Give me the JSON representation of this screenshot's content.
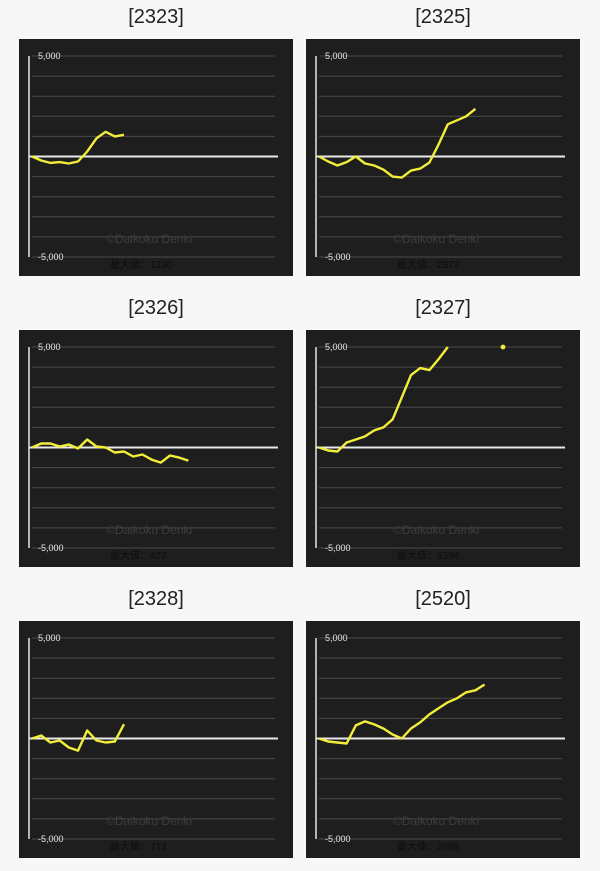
{
  "charts_grid": [
    {
      "id": "[2323]",
      "max_label": "最大値：1230"
    },
    {
      "id": "[2325]",
      "max_label": "最大値：2372"
    },
    {
      "id": "[2326]",
      "max_label": "最大値：427"
    },
    {
      "id": "[2327]",
      "max_label": "最大値：6394"
    },
    {
      "id": "[2328]",
      "max_label": "最大値：713"
    },
    {
      "id": "[2520]",
      "max_label": "最大値：2689"
    }
  ],
  "watermark": "©Daikoku Denki",
  "colors": {
    "page_bg": "#f7f7f7",
    "chart_bg": "#1e1e1e",
    "grid": "#4a4a4a",
    "zero_line": "#e8e8e8",
    "series": "#f2ee3a"
  },
  "chart_data": [
    {
      "type": "line",
      "title": "[2323]",
      "ylim": [
        -5000,
        5000
      ],
      "yticks": [
        5000,
        -5000
      ],
      "ytick_labels": [
        "5,000",
        "-5,000"
      ],
      "grid": true,
      "series": [
        {
          "values": [
            0,
            -200,
            -320,
            -280,
            -350,
            -250,
            250,
            900,
            1230,
            1000,
            1080
          ]
        }
      ]
    },
    {
      "type": "line",
      "title": "[2325]",
      "ylim": [
        -5000,
        5000
      ],
      "yticks": [
        5000,
        -5000
      ],
      "ytick_labels": [
        "5,000",
        "-5,000"
      ],
      "grid": true,
      "series": [
        {
          "values": [
            0,
            -250,
            -450,
            -280,
            0,
            -350,
            -450,
            -650,
            -1000,
            -1050,
            -700,
            -600,
            -300,
            600,
            1600,
            1800,
            2000,
            2372
          ]
        }
      ]
    },
    {
      "type": "line",
      "title": "[2326]",
      "ylim": [
        -5000,
        5000
      ],
      "yticks": [
        5000,
        -5000
      ],
      "ytick_labels": [
        "5,000",
        "-5,000"
      ],
      "grid": true,
      "series": [
        {
          "values": [
            0,
            200,
            200,
            50,
            150,
            -50,
            400,
            50,
            0,
            -250,
            -200,
            -450,
            -350,
            -600,
            -750,
            -400,
            -500,
            -650
          ]
        }
      ]
    },
    {
      "type": "line",
      "title": "[2327]",
      "ylim": [
        -5000,
        5000
      ],
      "yticks": [
        5000,
        -5000
      ],
      "ytick_labels": [
        "5,000",
        "-5,000"
      ],
      "grid": true,
      "series": [
        {
          "values": [
            0,
            -150,
            -200,
            250,
            400,
            550,
            850,
            1000,
            1400,
            2500,
            3600,
            3950,
            3850,
            4400,
            5000,
            null,
            null,
            null,
            null,
            null,
            5000
          ]
        }
      ]
    },
    {
      "type": "line",
      "title": "[2328]",
      "ylim": [
        -5000,
        5000
      ],
      "yticks": [
        5000,
        -5000
      ],
      "ytick_labels": [
        "5,000",
        "-5,000"
      ],
      "grid": true,
      "series": [
        {
          "values": [
            0,
            150,
            -200,
            -100,
            -450,
            -600,
            400,
            -100,
            -200,
            -150,
            713
          ]
        }
      ]
    },
    {
      "type": "line",
      "title": "[2520]",
      "ylim": [
        -5000,
        5000
      ],
      "yticks": [
        5000,
        -5000
      ],
      "ytick_labels": [
        "5,000",
        "-5,000"
      ],
      "grid": true,
      "series": [
        {
          "values": [
            0,
            -150,
            -200,
            -250,
            650,
            850,
            700,
            500,
            200,
            0,
            500,
            800,
            1200,
            1500,
            1800,
            2000,
            2300,
            2400,
            2689
          ]
        }
      ]
    }
  ]
}
